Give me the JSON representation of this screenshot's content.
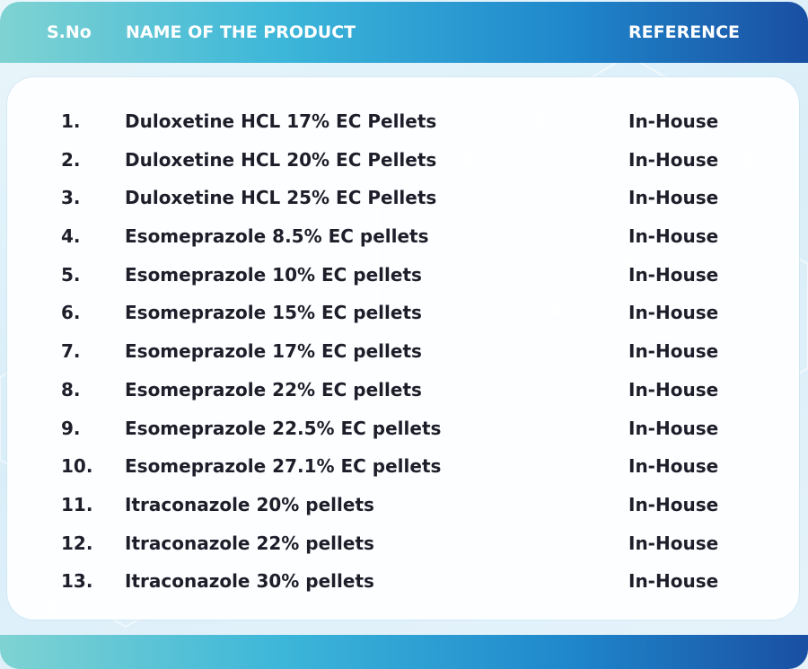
{
  "table": {
    "headers": {
      "sno": "S.No",
      "name": "NAME OF THE PRODUCT",
      "reference": "REFERENCE"
    },
    "rows": [
      {
        "sno": "1.",
        "name": "Duloxetine HCL 17% EC Pellets",
        "reference": "In-House"
      },
      {
        "sno": "2.",
        "name": "Duloxetine HCL 20% EC Pellets",
        "reference": "In-House"
      },
      {
        "sno": "3.",
        "name": "Duloxetine HCL 25% EC Pellets",
        "reference": "In-House"
      },
      {
        "sno": "4.",
        "name": "Esomeprazole 8.5%  EC pellets",
        "reference": "In-House"
      },
      {
        "sno": "5.",
        "name": "Esomeprazole 10%  EC pellets",
        "reference": "In-House"
      },
      {
        "sno": "6.",
        "name": "Esomeprazole 15%  EC pellets",
        "reference": "In-House"
      },
      {
        "sno": "7.",
        "name": "Esomeprazole 17% EC pellets",
        "reference": "In-House"
      },
      {
        "sno": "8.",
        "name": "Esomeprazole 22%  EC pellets",
        "reference": "In-House"
      },
      {
        "sno": "9.",
        "name": "Esomeprazole 22.5%  EC pellets",
        "reference": "In-House"
      },
      {
        "sno": "10.",
        "name": "Esomeprazole 27.1%  EC pellets",
        "reference": "In-House"
      },
      {
        "sno": "11.",
        "name": "Itraconazole 20% pellets",
        "reference": "In-House"
      },
      {
        "sno": "12.",
        "name": "Itraconazole 22% pellets",
        "reference": "In-House"
      },
      {
        "sno": "13.",
        "name": "Itraconazole 30% pellets",
        "reference": "In-House"
      }
    ]
  },
  "colors": {
    "header_gradient_start": "#7fd3d2",
    "header_gradient_mid": "#1f88cc",
    "header_gradient_end": "#1a4fa3",
    "text_dark": "#1e1e2a",
    "header_text": "#ffffff"
  }
}
